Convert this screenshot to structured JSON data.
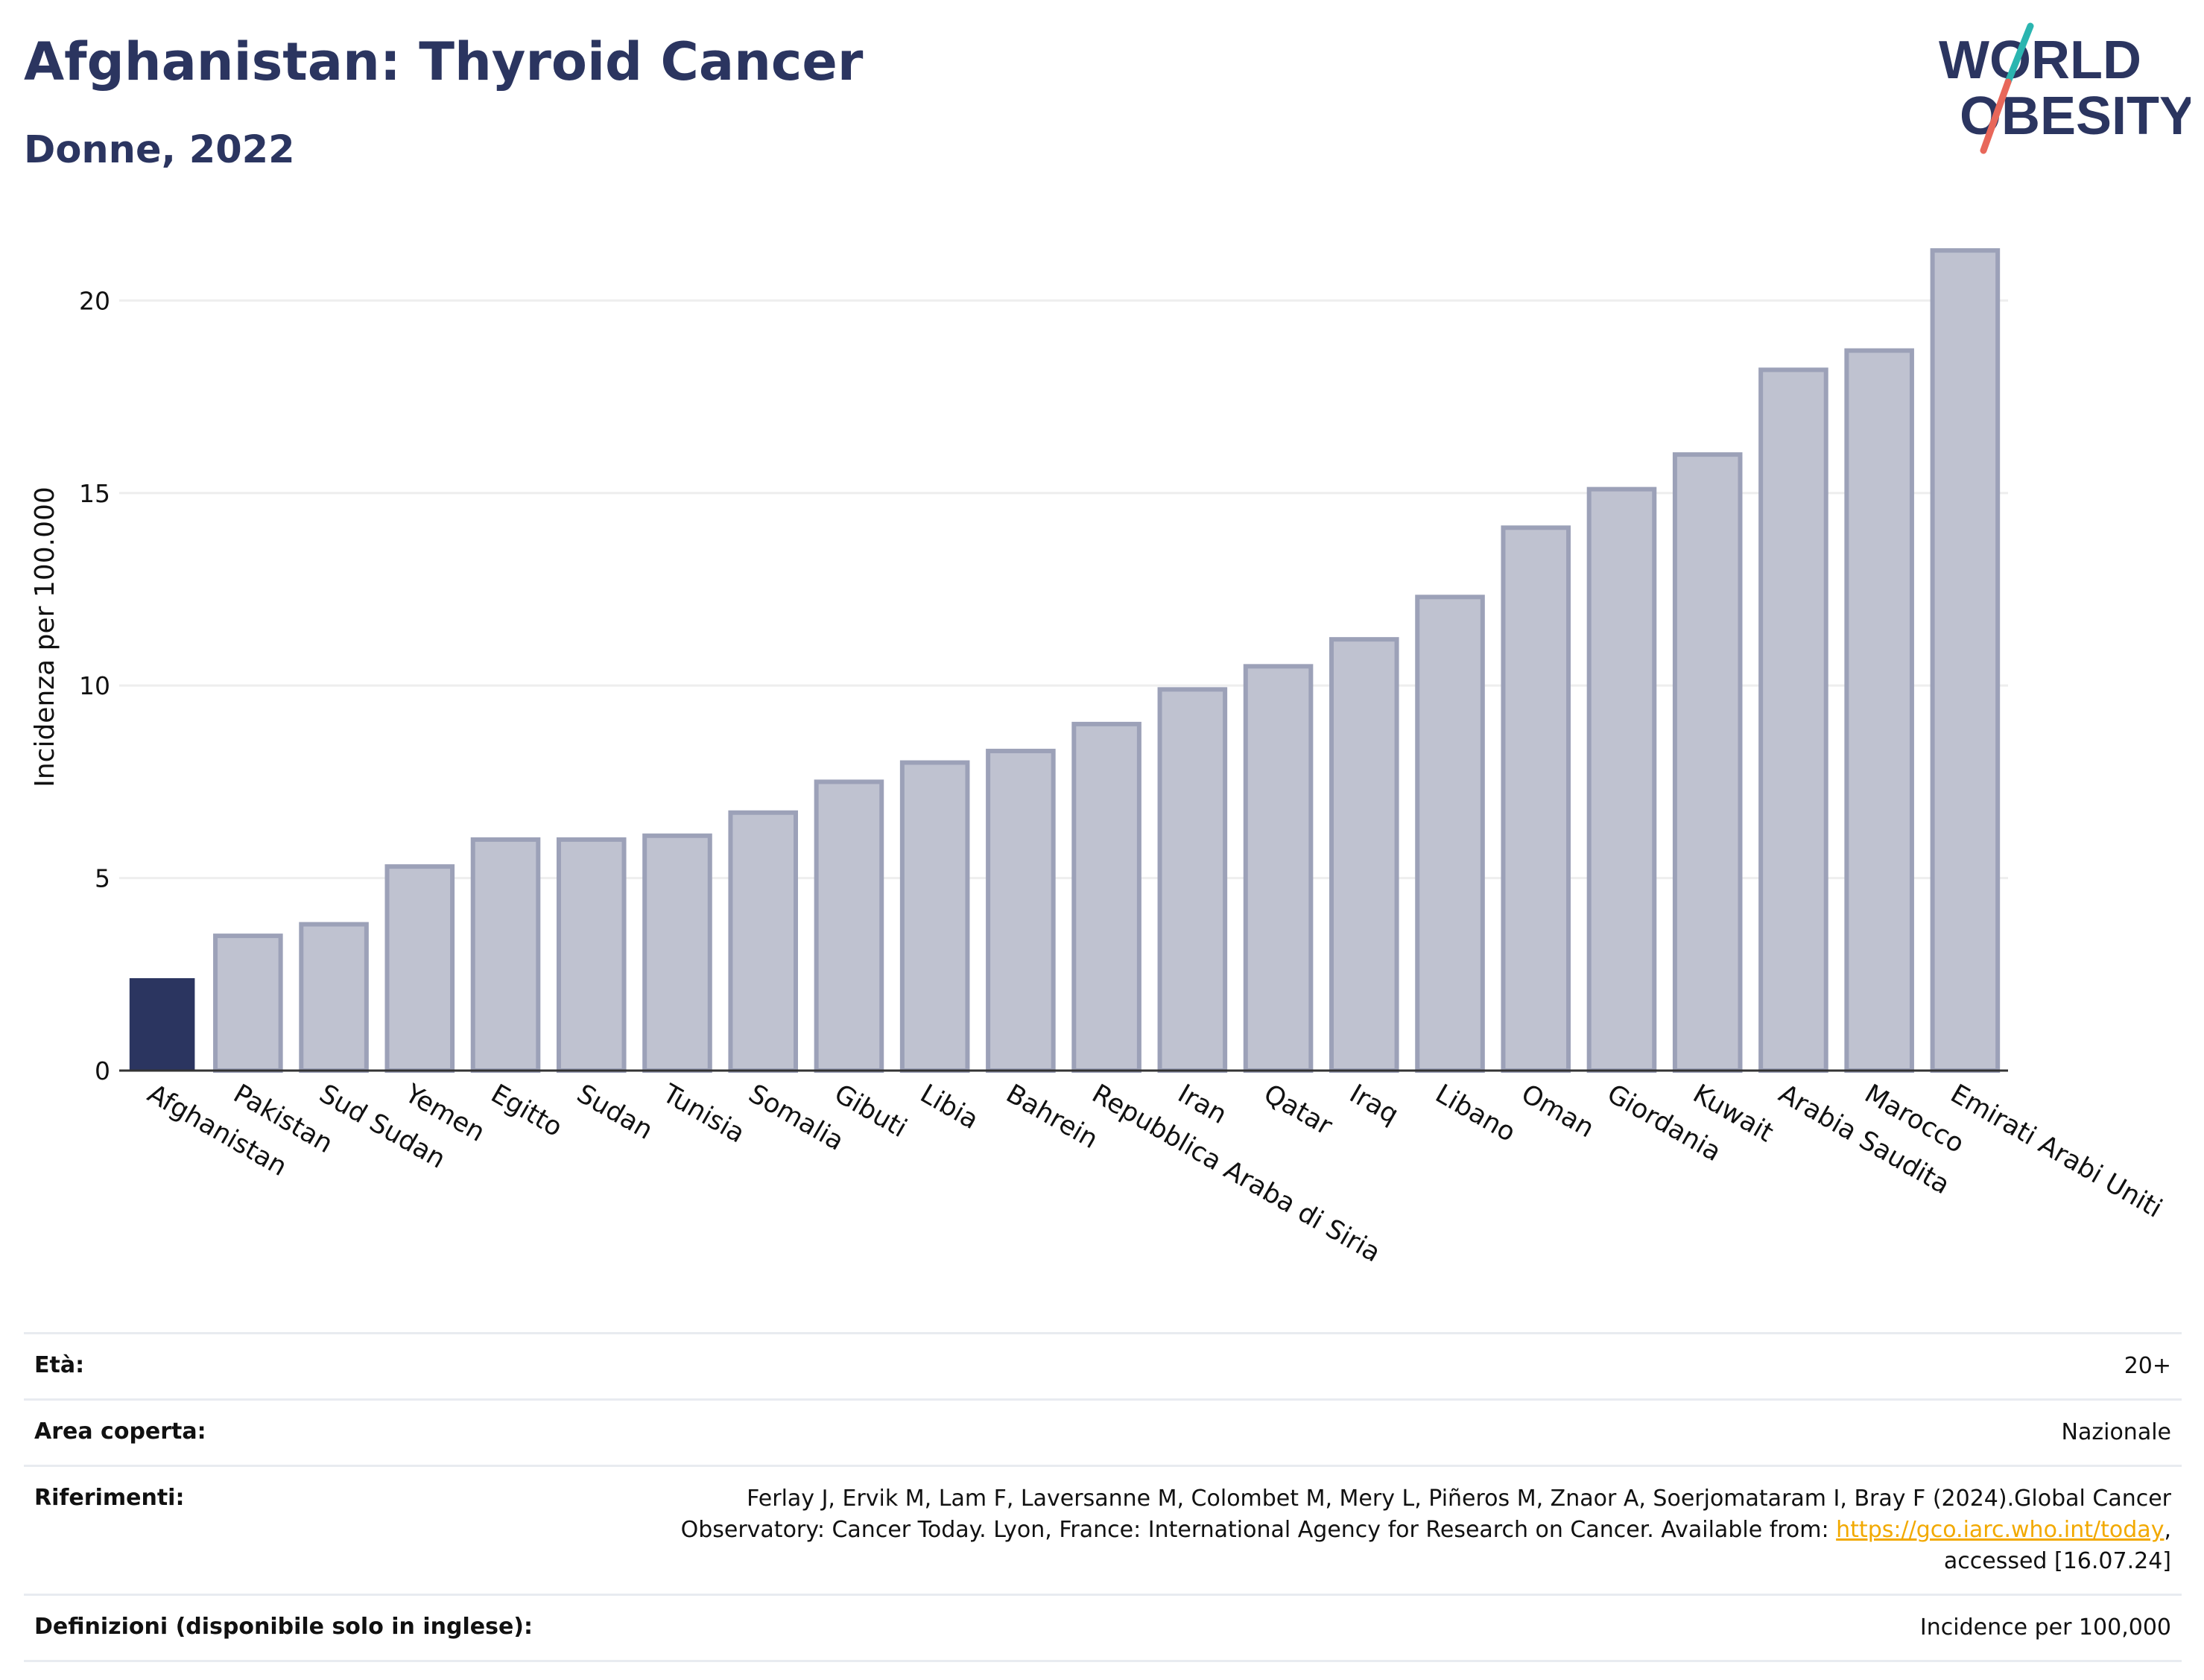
{
  "header": {
    "title": "Afghanistan: Thyroid Cancer",
    "subtitle": "Donne, 2022"
  },
  "logo": {
    "line1": "WORLD",
    "line2": "OBESITY",
    "colors": {
      "text": "#2b3560",
      "slash_top": "#2bb5b0",
      "slash_bottom": "#e8675a"
    }
  },
  "colors": {
    "highlight_bar": "#2b3560",
    "bar_fill": "#bfc2d0",
    "bar_stroke": "#9ca1b8",
    "grid": "#eeeeee",
    "axis": "#333333"
  },
  "chart_data": {
    "type": "bar",
    "ylabel": "Incidenza per 100.000",
    "xlabel": "",
    "ylim": [
      0,
      22
    ],
    "yticks": [
      0,
      5,
      10,
      15,
      20
    ],
    "grid": true,
    "highlight": "Afghanistan",
    "categories": [
      "Afghanistan",
      "Pakistan",
      "Sud Sudan",
      "Yemen",
      "Egitto",
      "Sudan",
      "Tunisia",
      "Somalia",
      "Gibuti",
      "Libia",
      "Bahrein",
      "Repubblica Araba di Siria",
      "Iran",
      "Qatar",
      "Iraq",
      "Libano",
      "Oman",
      "Giordania",
      "Kuwait",
      "Arabia Saudita",
      "Marocco",
      "Emirati Arabi Uniti"
    ],
    "values": [
      2.4,
      3.5,
      3.8,
      5.3,
      6.0,
      6.0,
      6.1,
      6.7,
      7.5,
      8.0,
      8.3,
      9.0,
      9.9,
      10.5,
      11.2,
      12.3,
      14.1,
      15.1,
      16.0,
      18.2,
      18.7,
      21.3
    ]
  },
  "info": {
    "age": {
      "label": "Età:",
      "value": "20+"
    },
    "area": {
      "label": "Area coperta:",
      "value": "Nazionale"
    },
    "refs": {
      "label": "Riferimenti:",
      "text1": "Ferlay J, Ervik M, Lam F, Laversanne M, Colombet M, Mery L, Piñeros M, Znaor A, Soerjomataram I, Bray F (2024).Global Cancer Observatory: Cancer Today. Lyon, France: International Agency for Research on Cancer. Available from: ",
      "link": "https://gco.iarc.who.int/today",
      "text2": ", accessed [16.07.24]"
    },
    "defs": {
      "label": "Definizioni (disponibile solo in inglese):",
      "value": "Incidence per 100,000"
    }
  }
}
